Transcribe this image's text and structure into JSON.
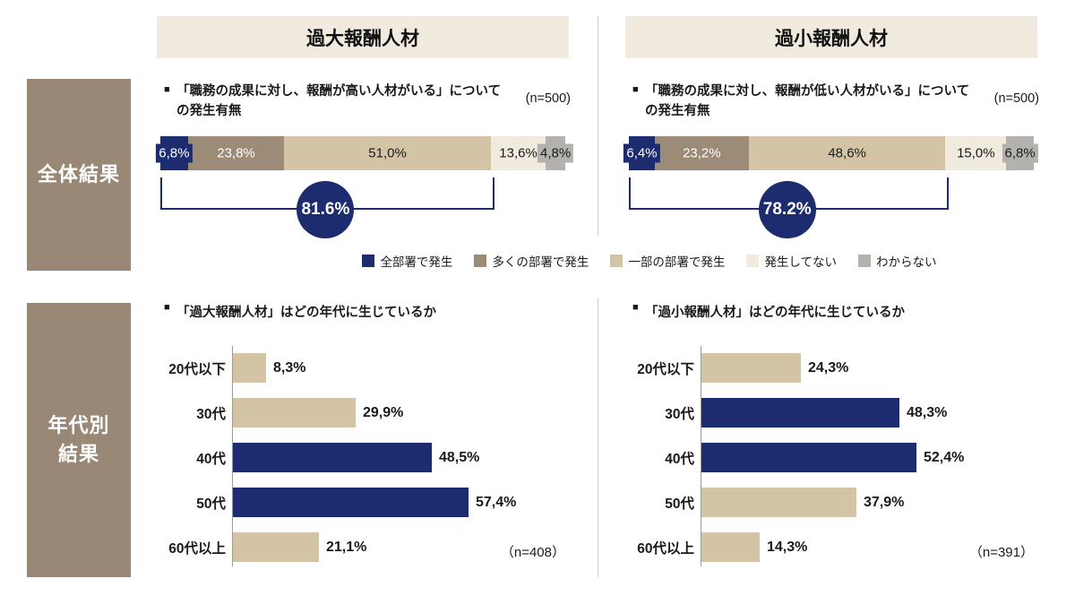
{
  "format": {
    "bullet": "■"
  },
  "colors": {
    "navy": "#1c2c6e",
    "brown": "#9b8b77",
    "tan": "#d3c4a5",
    "cream": "#f1ebdf",
    "gray": "#b4b2af",
    "sidebar": "#998876",
    "header_bg": "#f0eadf",
    "axis": "#9a9a9a",
    "divider": "#cccccc"
  },
  "sidebar": {
    "overall": {
      "label": "全体結果"
    },
    "age": {
      "label_line1": "年代別",
      "label_line2": "結果"
    }
  },
  "columns": [
    {
      "header": "過大報酬人材",
      "question_line1": "「職務の成果に対し、報酬が高い人材がいる」について",
      "question_line2": "の発生有無",
      "n_top": "(n=500)",
      "age_title": "「過大報酬人材」はどの年代に生じているか",
      "n_bottom": "（n=408）"
    },
    {
      "header": "過小報酬人材",
      "question_line1": "「職務の成果に対し、報酬が低い人材がいる」について",
      "question_line2": "の発生有無",
      "n_top": "(n=500)",
      "age_title": "「過小報酬人材」はどの年代に生じているか",
      "n_bottom": "（n=391）"
    }
  ],
  "legend": {
    "items": [
      {
        "label": "全部署で発生",
        "color": "navy"
      },
      {
        "label": "多くの部署で発生",
        "color": "brown"
      },
      {
        "label": "一部の部署で発生",
        "color": "tan"
      },
      {
        "label": "発生してない",
        "color": "cream"
      },
      {
        "label": "わからない",
        "color": "gray"
      }
    ]
  },
  "chart_data": [
    {
      "type": "stacked_bar",
      "title": "「職務の成果に対し、報酬が高い人材がいる」についての発生有無",
      "n": 500,
      "categories": [
        "全部署で発生",
        "多くの部署で発生",
        "一部の部署で発生",
        "発生してない",
        "わからない"
      ],
      "values": [
        6.8,
        23.8,
        51.0,
        13.6,
        4.8
      ],
      "segments": [
        {
          "label": "全部署で発生",
          "value": 6.8,
          "display": "6,8%",
          "color": "navy",
          "label_color": "#ffffff"
        },
        {
          "label": "多くの部署で発生",
          "value": 23.8,
          "display": "23,8%",
          "color": "brown",
          "label_color": "#ffffff"
        },
        {
          "label": "一部の部署で発生",
          "value": 51.0,
          "display": "51,0%",
          "color": "tan",
          "label_color": "#1a1a1a"
        },
        {
          "label": "発生してない",
          "value": 13.6,
          "display": "13,6%",
          "color": "cream",
          "label_color": "#1a1a1a"
        },
        {
          "label": "わからない",
          "value": 4.8,
          "display": "4,8%",
          "color": "gray",
          "label_color": "#1a1a1a"
        }
      ],
      "summary": {
        "display": "81.6%",
        "value": 81.6
      }
    },
    {
      "type": "stacked_bar",
      "title": "「職務の成果に対し、報酬が低い人材がいる」についての発生有無",
      "n": 500,
      "categories": [
        "全部署で発生",
        "多くの部署で発生",
        "一部の部署で発生",
        "発生してない",
        "わからない"
      ],
      "values": [
        6.4,
        23.2,
        48.6,
        15.0,
        6.8
      ],
      "segments": [
        {
          "label": "全部署で発生",
          "value": 6.4,
          "display": "6,4%",
          "color": "navy",
          "label_color": "#ffffff"
        },
        {
          "label": "多くの部署で発生",
          "value": 23.2,
          "display": "23,2%",
          "color": "brown",
          "label_color": "#ffffff"
        },
        {
          "label": "一部の部署で発生",
          "value": 48.6,
          "display": "48,6%",
          "color": "tan",
          "label_color": "#1a1a1a"
        },
        {
          "label": "発生してない",
          "value": 15.0,
          "display": "15,0%",
          "color": "cream",
          "label_color": "#1a1a1a"
        },
        {
          "label": "わからない",
          "value": 6.8,
          "display": "6,8%",
          "color": "gray",
          "label_color": "#1a1a1a"
        }
      ],
      "summary": {
        "display": "78.2%",
        "value": 78.2
      }
    },
    {
      "type": "bar",
      "title": "「過大報酬人材」はどの年代に生じているか",
      "n": 408,
      "categories": [
        "20代以下",
        "30代",
        "40代",
        "50代",
        "60代以上"
      ],
      "values": [
        8.3,
        29.9,
        48.5,
        57.4,
        21.1
      ],
      "display": [
        "8,3%",
        "29,9%",
        "48,5%",
        "57,4%",
        "21,1%"
      ],
      "bar_colors": [
        "tan",
        "tan",
        "navy",
        "navy",
        "tan"
      ],
      "xlim": [
        0,
        65
      ]
    },
    {
      "type": "bar",
      "title": "「過小報酬人材」はどの年代に生じているか",
      "n": 391,
      "categories": [
        "20代以下",
        "30代",
        "40代",
        "50代",
        "60代以上"
      ],
      "values": [
        24.3,
        48.3,
        52.4,
        37.9,
        14.3
      ],
      "display": [
        "24,3%",
        "48,3%",
        "52,4%",
        "37,9%",
        "14,3%"
      ],
      "bar_colors": [
        "tan",
        "navy",
        "navy",
        "tan",
        "tan"
      ],
      "xlim": [
        0,
        65
      ]
    }
  ]
}
